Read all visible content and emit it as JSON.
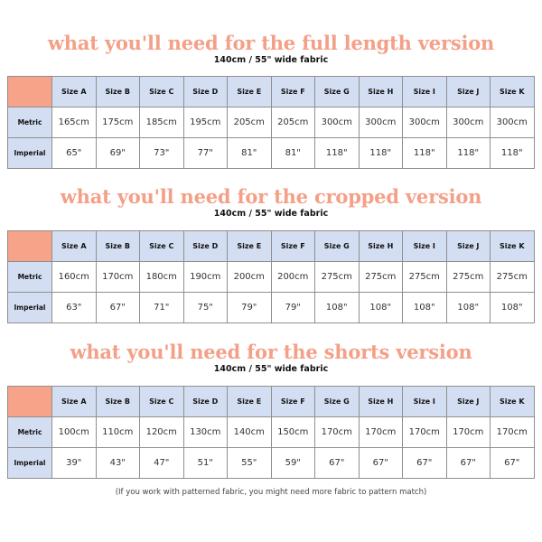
{
  "sizes": [
    "Size A",
    "Size B",
    "Size C",
    "Size D",
    "Size E",
    "Size F",
    "Size G",
    "Size H",
    "Size I",
    "Size J",
    "Size K"
  ],
  "row_labels": {
    "metric": "Metric",
    "imperial": "Imperial"
  },
  "colors": {
    "title": "#f4a088",
    "corner": "#f6a38a",
    "header": "#d4def2"
  },
  "sections": [
    {
      "title": "what you'll need for the full length version",
      "subtitle": "140cm / 55\" wide fabric",
      "metric": [
        "165cm",
        "175cm",
        "185cm",
        "195cm",
        "205cm",
        "205cm",
        "300cm",
        "300cm",
        "300cm",
        "300cm",
        "300cm"
      ],
      "imperial": [
        "65\"",
        "69\"",
        "73\"",
        "77\"",
        "81\"",
        "81\"",
        "118\"",
        "118\"",
        "118\"",
        "118\"",
        "118\""
      ]
    },
    {
      "title": "what you'll need for the cropped version",
      "subtitle": "140cm / 55\" wide fabric",
      "metric": [
        "160cm",
        "170cm",
        "180cm",
        "190cm",
        "200cm",
        "200cm",
        "275cm",
        "275cm",
        "275cm",
        "275cm",
        "275cm"
      ],
      "imperial": [
        "63\"",
        "67\"",
        "71\"",
        "75\"",
        "79\"",
        "79\"",
        "108\"",
        "108\"",
        "108\"",
        "108\"",
        "108\""
      ]
    },
    {
      "title": "what you'll need for the shorts version",
      "subtitle": "140cm / 55\" wide fabric",
      "metric": [
        "100cm",
        "110cm",
        "120cm",
        "130cm",
        "140cm",
        "150cm",
        "170cm",
        "170cm",
        "170cm",
        "170cm",
        "170cm"
      ],
      "imperial": [
        "39\"",
        "43\"",
        "47\"",
        "51\"",
        "55\"",
        "59\"",
        "67\"",
        "67\"",
        "67\"",
        "67\"",
        "67\""
      ]
    }
  ],
  "note": "(If you work with patterned fabric, you might need more fabric to pattern match)"
}
